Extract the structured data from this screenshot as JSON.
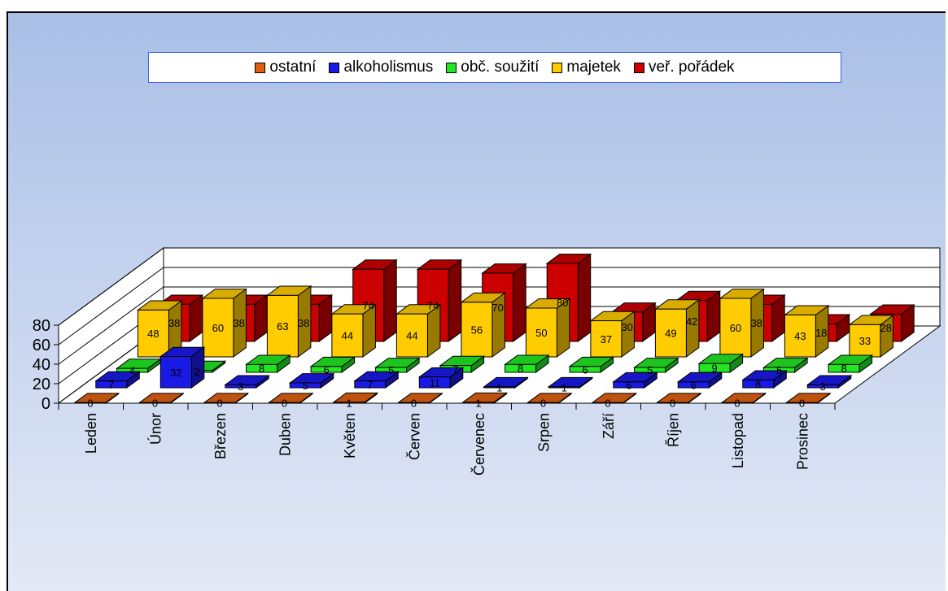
{
  "chart_data": {
    "type": "bar",
    "title": "",
    "xlabel": "",
    "ylabel": "",
    "ylim": [
      0,
      80
    ],
    "yticks": [
      0,
      20,
      40,
      60,
      80
    ],
    "legend_position": "top-center",
    "categories": [
      "Leden",
      "Únor",
      "Březen",
      "Duben",
      "Květen",
      "Červen",
      "Červenec",
      "Srpen",
      "Září",
      "Říjen",
      "Listopad",
      "Prosinec"
    ],
    "series": [
      {
        "name": "ostatní",
        "color": "#e06010",
        "values": [
          0,
          0,
          0,
          0,
          1,
          0,
          1,
          0,
          0,
          0,
          0,
          0
        ]
      },
      {
        "name": "alkoholismus",
        "color": "#1a1ae6",
        "values": [
          7,
          32,
          3,
          5,
          7,
          11,
          1,
          1,
          6,
          6,
          8,
          3
        ]
      },
      {
        "name": "obč. soužití",
        "color": "#22e622",
        "values": [
          4,
          2,
          8,
          6,
          5,
          7,
          8,
          6,
          5,
          9,
          5,
          8
        ]
      },
      {
        "name": "majetek",
        "color": "#ffcc00",
        "values": [
          48,
          60,
          63,
          44,
          44,
          56,
          50,
          37,
          49,
          60,
          43,
          33
        ]
      },
      {
        "name": "veř. pořádek",
        "color": "#cc0000",
        "values": [
          38,
          38,
          38,
          74,
          74,
          70,
          80,
          30,
          42,
          38,
          18,
          28
        ]
      }
    ]
  }
}
